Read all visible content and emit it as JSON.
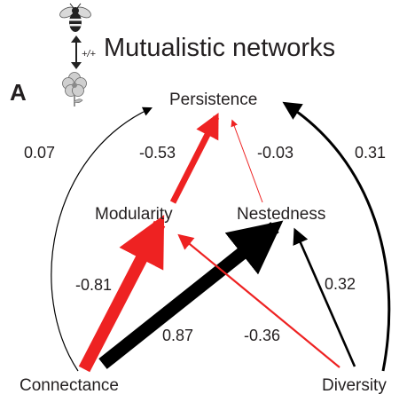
{
  "figure": {
    "panel_letter": "A",
    "title": "Mutualistic networks",
    "interaction_sign": "+/+",
    "icons": {
      "top": "bee-icon",
      "bottom": "flower-icon"
    }
  },
  "colors": {
    "positive": "#000000",
    "negative": "#ee2222",
    "text": "#231f20"
  },
  "nodes": {
    "persistence": "Persistence",
    "modularity": "Modularity",
    "nestedness": "Nestedness",
    "connectance": "Connectance",
    "diversity": "Diversity"
  },
  "paths": [
    {
      "id": "connectance-persistence",
      "from": "Connectance",
      "to": "Persistence",
      "coefficient": "0.07",
      "sign": "positive"
    },
    {
      "id": "modularity-persistence",
      "from": "Modularity",
      "to": "Persistence",
      "coefficient": "-0.53",
      "sign": "negative"
    },
    {
      "id": "nestedness-persistence",
      "from": "Nestedness",
      "to": "Persistence",
      "coefficient": "-0.03",
      "sign": "negative"
    },
    {
      "id": "diversity-persistence",
      "from": "Diversity",
      "to": "Persistence",
      "coefficient": "0.31",
      "sign": "positive"
    },
    {
      "id": "connectance-modularity",
      "from": "Connectance",
      "to": "Modularity",
      "coefficient": "-0.81",
      "sign": "negative"
    },
    {
      "id": "connectance-nestedness",
      "from": "Connectance",
      "to": "Nestedness",
      "coefficient": "0.87",
      "sign": "positive"
    },
    {
      "id": "diversity-modularity",
      "from": "Diversity",
      "to": "Modularity",
      "coefficient": "-0.36",
      "sign": "negative"
    },
    {
      "id": "diversity-nestedness",
      "from": "Diversity",
      "to": "Nestedness",
      "coefficient": "0.32",
      "sign": "positive"
    }
  ]
}
